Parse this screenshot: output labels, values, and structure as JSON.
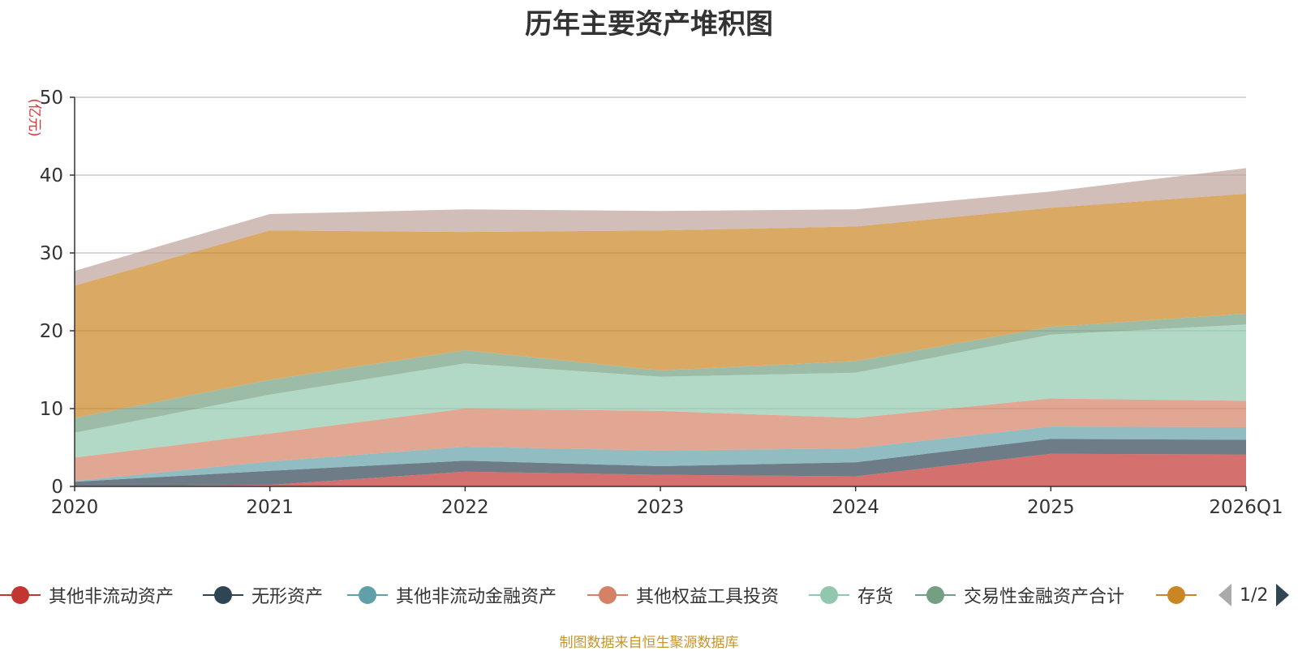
{
  "chart_data": {
    "type": "area",
    "stacked": true,
    "title": "历年主要资产堆积图",
    "ylabel": "(亿元)",
    "ylim": [
      0,
      50
    ],
    "yticks": [
      0,
      10,
      20,
      30,
      40,
      50
    ],
    "grid": true,
    "legend_position": "bottom",
    "categories": [
      "2020",
      "2021",
      "2022",
      "2023",
      "2024",
      "2025",
      "2026Q1"
    ],
    "series": [
      {
        "name": "其他非流动资产",
        "color": "#c23531",
        "values": [
          0.0,
          0.2,
          1.9,
          1.5,
          1.3,
          4.2,
          4.1
        ]
      },
      {
        "name": "无形资产",
        "color": "#2f4554",
        "values": [
          0.6,
          1.8,
          1.4,
          1.1,
          1.8,
          1.9,
          1.9
        ]
      },
      {
        "name": "其他非流动金融资产",
        "color": "#61a0a8",
        "values": [
          0.1,
          1.2,
          1.8,
          2.0,
          1.8,
          1.6,
          1.6
        ]
      },
      {
        "name": "其他权益工具投资",
        "color": "#d48265",
        "values": [
          3.0,
          3.6,
          4.9,
          5.1,
          3.9,
          3.6,
          3.4
        ]
      },
      {
        "name": "存货",
        "color": "#91c7ae",
        "values": [
          3.2,
          5.0,
          5.8,
          4.4,
          5.8,
          8.2,
          9.8
        ]
      },
      {
        "name": "交易性金融资产合计",
        "color": "#749f83",
        "values": [
          1.9,
          1.9,
          1.7,
          0.8,
          1.5,
          1.0,
          1.4
        ]
      },
      {
        "name": "",
        "color": "#ca8622",
        "values": [
          17.0,
          19.2,
          15.2,
          18.0,
          17.3,
          15.3,
          15.4
        ]
      },
      {
        "name": "",
        "color": "#bda29a",
        "values": [
          1.9,
          2.1,
          2.9,
          2.5,
          2.2,
          2.1,
          3.3
        ]
      }
    ],
    "area_opacity": 0.7
  },
  "legend": {
    "page": "1/2"
  },
  "footer": {
    "source": "制图数据来自恒生聚源数据库"
  }
}
